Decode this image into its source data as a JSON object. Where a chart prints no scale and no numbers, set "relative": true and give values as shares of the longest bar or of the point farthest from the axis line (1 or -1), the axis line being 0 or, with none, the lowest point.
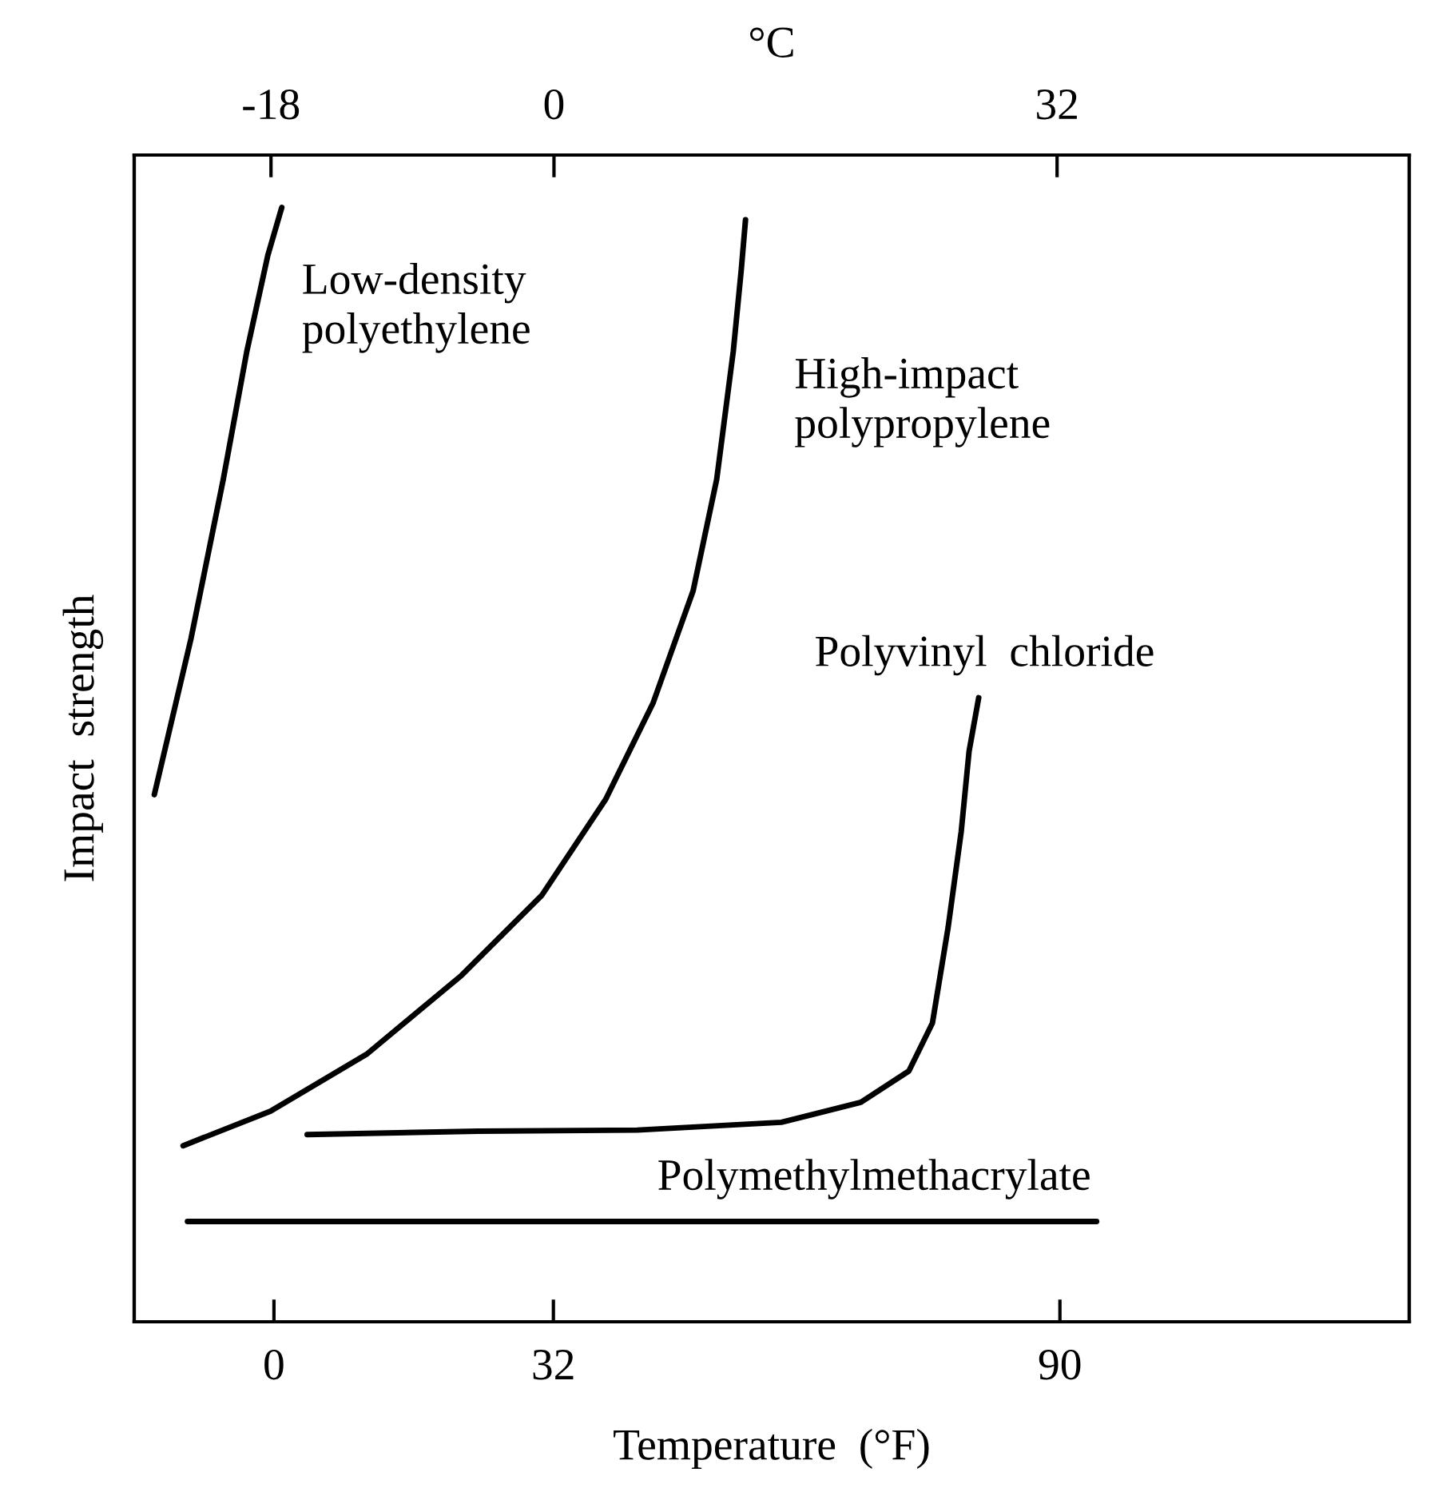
{
  "chart_data": {
    "type": "line",
    "relative": true,
    "xlabel": "Temperature  (°F)",
    "ylabel": "Impact  strength",
    "x2label": "°C",
    "xlim": [
      -16,
      130
    ],
    "xticks": [
      0,
      32,
      90
    ],
    "x2lim": [
      -26.7,
      54.4
    ],
    "x2ticks": [
      -18,
      0,
      32
    ],
    "series": [
      {
        "name": "Low-density\npolyethylene",
        "color": "#000000",
        "x": [
          -13.7,
          -9.5,
          -5.8,
          -3.1,
          -0.7,
          0.9
        ],
        "values": [
          0.473,
          0.613,
          0.756,
          0.871,
          0.957,
          1.0
        ]
      },
      {
        "name": "High-impact\npolypropylene",
        "color": "#000000",
        "x": [
          -10.4,
          -0.4,
          10.6,
          21.5,
          30.7,
          38.0,
          43.4,
          48.0,
          50.7,
          52.6,
          53.5,
          54.0
        ],
        "values": [
          0.158,
          0.189,
          0.24,
          0.311,
          0.383,
          0.469,
          0.555,
          0.656,
          0.756,
          0.871,
          0.943,
          0.989
        ]
      },
      {
        "name": "Polyvinyl  chloride",
        "color": "#000000",
        "x": [
          3.8,
          23.4,
          41.6,
          58.1,
          67.2,
          72.7,
          75.4,
          77.2,
          78.7,
          79.6,
          80.7
        ],
        "values": [
          0.168,
          0.171,
          0.172,
          0.179,
          0.197,
          0.225,
          0.268,
          0.354,
          0.44,
          0.512,
          0.56
        ]
      },
      {
        "name": "Polymethylmethacrylate",
        "color": "#000000",
        "x": [
          -9.9,
          94.2
        ],
        "values": [
          0.09,
          0.09
        ]
      }
    ],
    "grid": false,
    "legend": false,
    "marker": "none",
    "line_style": "solid"
  }
}
